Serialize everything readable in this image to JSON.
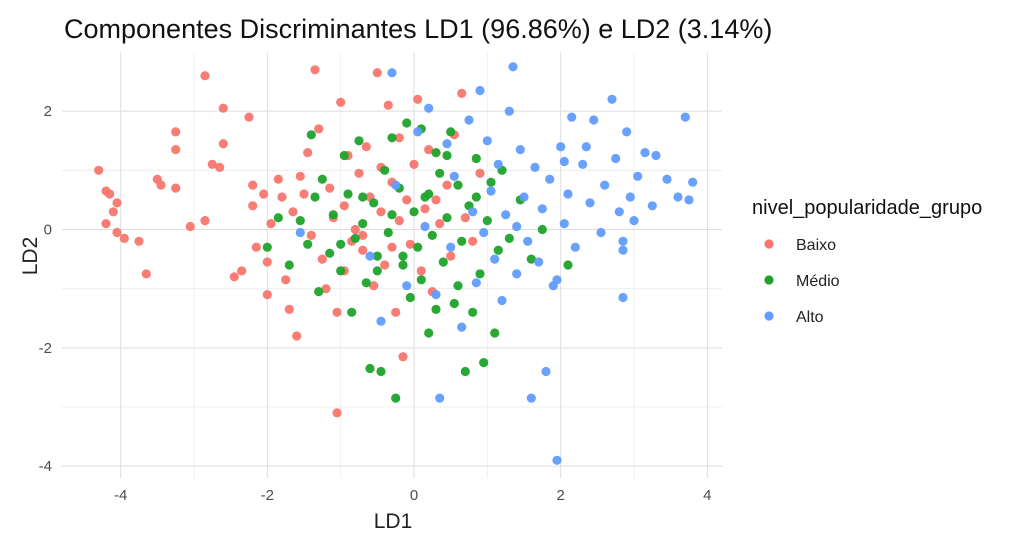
{
  "chart_data": {
    "type": "scatter",
    "title": "Componentes Discriminantes LD1 (96.86%) e LD2 (3.14%)",
    "xlabel": "LD1",
    "ylabel": "LD2",
    "xlim": [
      -4.8,
      4.2
    ],
    "ylim": [
      -4.2,
      3.0
    ],
    "xticks": [
      "-4",
      "-2",
      "0",
      "2",
      "4"
    ],
    "yticks": [
      "-4",
      "-2",
      "0",
      "2"
    ],
    "grid": true,
    "legend": {
      "title": "nivel_popularidade_grupo",
      "placement": "right",
      "entries": [
        "Baixo",
        "Médio",
        "Alto"
      ]
    },
    "series": [
      {
        "name": "Baixo",
        "color": "#f8766d",
        "points": [
          [
            -4.3,
            1.0
          ],
          [
            -4.2,
            0.65
          ],
          [
            -4.15,
            0.6
          ],
          [
            -4.05,
            0.45
          ],
          [
            -4.1,
            0.3
          ],
          [
            -4.2,
            0.1
          ],
          [
            -4.05,
            -0.05
          ],
          [
            -3.95,
            -0.15
          ],
          [
            -3.75,
            -0.2
          ],
          [
            -3.65,
            -0.75
          ],
          [
            -3.5,
            0.85
          ],
          [
            -3.45,
            0.75
          ],
          [
            -3.25,
            1.35
          ],
          [
            -3.25,
            1.65
          ],
          [
            -3.25,
            0.7
          ],
          [
            -3.05,
            0.05
          ],
          [
            -2.85,
            2.6
          ],
          [
            -2.85,
            0.15
          ],
          [
            -2.75,
            1.1
          ],
          [
            -2.65,
            1.05
          ],
          [
            -2.6,
            1.45
          ],
          [
            -2.6,
            2.05
          ],
          [
            -2.45,
            -0.8
          ],
          [
            -2.35,
            -0.7
          ],
          [
            -2.25,
            1.9
          ],
          [
            -2.2,
            0.75
          ],
          [
            -2.2,
            0.4
          ],
          [
            -2.15,
            -0.3
          ],
          [
            -2.05,
            0.6
          ],
          [
            -2.0,
            -1.1
          ],
          [
            -2.0,
            -0.55
          ],
          [
            -1.95,
            0.1
          ],
          [
            -1.85,
            0.85
          ],
          [
            -1.8,
            0.55
          ],
          [
            -1.75,
            -0.85
          ],
          [
            -1.7,
            -1.35
          ],
          [
            -1.65,
            0.3
          ],
          [
            -1.6,
            -1.8
          ],
          [
            -1.55,
            0.9
          ],
          [
            -1.5,
            0.6
          ],
          [
            -1.45,
            1.3
          ],
          [
            -1.4,
            -0.1
          ],
          [
            -1.35,
            2.7
          ],
          [
            -1.3,
            1.7
          ],
          [
            -1.25,
            -0.5
          ],
          [
            -1.2,
            -1.0
          ],
          [
            -1.15,
            0.7
          ],
          [
            -1.1,
            0.2
          ],
          [
            -1.05,
            -1.4
          ],
          [
            -1.0,
            2.15
          ],
          [
            -0.95,
            0.4
          ],
          [
            -0.9,
            1.25
          ],
          [
            -0.85,
            -0.2
          ],
          [
            -0.8,
            0.0
          ],
          [
            -0.75,
            0.95
          ],
          [
            -0.7,
            -0.35
          ],
          [
            -0.65,
            1.4
          ],
          [
            -0.6,
            0.55
          ],
          [
            -0.55,
            -0.95
          ],
          [
            -0.5,
            2.65
          ],
          [
            -0.45,
            0.3
          ],
          [
            -0.45,
            1.05
          ],
          [
            -0.4,
            -0.6
          ],
          [
            -0.35,
            2.1
          ],
          [
            -0.3,
            0.8
          ],
          [
            -0.25,
            -1.4
          ],
          [
            -0.2,
            0.15
          ],
          [
            -0.2,
            1.55
          ],
          [
            -0.15,
            -2.15
          ],
          [
            -0.1,
            0.5
          ],
          [
            -0.05,
            -0.25
          ],
          [
            0.0,
            1.1
          ],
          [
            0.05,
            2.2
          ],
          [
            0.1,
            -0.7
          ],
          [
            0.15,
            0.35
          ],
          [
            0.2,
            1.35
          ],
          [
            0.25,
            -1.05
          ],
          [
            0.35,
            0.1
          ],
          [
            0.45,
            0.75
          ],
          [
            0.5,
            -0.45
          ],
          [
            0.55,
            1.6
          ],
          [
            0.65,
            2.3
          ],
          [
            0.7,
            0.2
          ],
          [
            0.8,
            -0.2
          ],
          [
            0.9,
            0.95
          ],
          [
            -1.05,
            -3.1
          ],
          [
            -0.3,
            -0.3
          ],
          [
            -0.7,
            -0.1
          ],
          [
            -0.95,
            -0.7
          ],
          [
            0.3,
            0.5
          ]
        ]
      },
      {
        "name": "Médio",
        "color": "#1fa32b",
        "points": [
          [
            -2.0,
            -0.3
          ],
          [
            -1.85,
            0.2
          ],
          [
            -1.7,
            -0.6
          ],
          [
            -1.55,
            0.15
          ],
          [
            -1.45,
            -0.25
          ],
          [
            -1.4,
            1.6
          ],
          [
            -1.35,
            0.55
          ],
          [
            -1.3,
            -1.05
          ],
          [
            -1.25,
            0.85
          ],
          [
            -1.15,
            -0.4
          ],
          [
            -1.1,
            0.25
          ],
          [
            -1.0,
            -0.7
          ],
          [
            -0.95,
            1.25
          ],
          [
            -0.9,
            0.6
          ],
          [
            -0.85,
            -1.4
          ],
          [
            -0.8,
            -0.15
          ],
          [
            -0.75,
            1.5
          ],
          [
            -0.7,
            0.1
          ],
          [
            -0.65,
            -0.9
          ],
          [
            -0.6,
            -2.35
          ],
          [
            -0.55,
            0.45
          ],
          [
            -0.5,
            -0.45
          ],
          [
            -0.45,
            -2.4
          ],
          [
            -0.4,
            1.0
          ],
          [
            -0.35,
            -0.05
          ],
          [
            -0.3,
            1.55
          ],
          [
            -0.25,
            -2.85
          ],
          [
            -0.2,
            0.7
          ],
          [
            -0.15,
            -0.6
          ],
          [
            -0.1,
            1.8
          ],
          [
            -0.05,
            -1.15
          ],
          [
            0.0,
            0.3
          ],
          [
            0.05,
            -0.3
          ],
          [
            0.1,
            1.7
          ],
          [
            0.15,
            0.55
          ],
          [
            0.2,
            -1.75
          ],
          [
            0.25,
            -0.1
          ],
          [
            0.3,
            1.3
          ],
          [
            0.35,
            0.95
          ],
          [
            0.4,
            -0.55
          ],
          [
            0.45,
            0.2
          ],
          [
            0.5,
            1.65
          ],
          [
            0.55,
            -1.25
          ],
          [
            0.6,
            0.75
          ],
          [
            0.65,
            -0.2
          ],
          [
            0.7,
            -2.4
          ],
          [
            0.75,
            0.4
          ],
          [
            0.8,
            -1.4
          ],
          [
            0.85,
            1.2
          ],
          [
            0.9,
            -0.75
          ],
          [
            0.95,
            -2.25
          ],
          [
            1.0,
            0.15
          ],
          [
            1.05,
            0.8
          ],
          [
            1.1,
            -1.75
          ],
          [
            1.15,
            -0.35
          ],
          [
            1.2,
            1.0
          ],
          [
            1.3,
            -0.15
          ],
          [
            1.45,
            0.5
          ],
          [
            1.6,
            -0.5
          ],
          [
            1.75,
            0.0
          ],
          [
            2.1,
            -0.6
          ],
          [
            -0.5,
            -0.7
          ],
          [
            0.2,
            0.6
          ],
          [
            -0.3,
            0.25
          ],
          [
            0.6,
            -0.95
          ],
          [
            -0.15,
            -0.45
          ],
          [
            0.45,
            1.25
          ],
          [
            0.85,
            0.55
          ],
          [
            -0.7,
            0.55
          ],
          [
            0.3,
            -1.35
          ],
          [
            -1.0,
            -0.25
          ],
          [
            0.1,
            -0.85
          ]
        ]
      },
      {
        "name": "Alto",
        "color": "#619cff",
        "points": [
          [
            -1.55,
            -0.05
          ],
          [
            -0.6,
            -0.45
          ],
          [
            -0.45,
            -1.55
          ],
          [
            -0.3,
            2.65
          ],
          [
            -0.25,
            0.75
          ],
          [
            -0.1,
            -0.95
          ],
          [
            0.05,
            1.65
          ],
          [
            0.15,
            0.05
          ],
          [
            0.2,
            2.05
          ],
          [
            0.3,
            -1.1
          ],
          [
            0.35,
            -2.85
          ],
          [
            0.45,
            1.45
          ],
          [
            0.5,
            -0.3
          ],
          [
            0.55,
            0.9
          ],
          [
            0.65,
            -1.65
          ],
          [
            0.75,
            1.85
          ],
          [
            0.8,
            0.3
          ],
          [
            0.85,
            -0.9
          ],
          [
            0.9,
            2.35
          ],
          [
            0.95,
            -0.05
          ],
          [
            1.0,
            1.5
          ],
          [
            1.05,
            0.65
          ],
          [
            1.1,
            -0.5
          ],
          [
            1.15,
            1.1
          ],
          [
            1.2,
            -1.2
          ],
          [
            1.25,
            0.25
          ],
          [
            1.3,
            2.0
          ],
          [
            1.35,
            2.75
          ],
          [
            1.4,
            -0.75
          ],
          [
            1.45,
            1.35
          ],
          [
            1.5,
            0.55
          ],
          [
            1.55,
            -0.2
          ],
          [
            1.6,
            -2.85
          ],
          [
            1.65,
            1.05
          ],
          [
            1.7,
            -0.55
          ],
          [
            1.75,
            0.35
          ],
          [
            1.8,
            -2.4
          ],
          [
            1.85,
            0.85
          ],
          [
            1.9,
            -0.95
          ],
          [
            1.95,
            -3.9
          ],
          [
            2.0,
            1.4
          ],
          [
            2.05,
            0.1
          ],
          [
            2.1,
            0.6
          ],
          [
            2.15,
            1.9
          ],
          [
            2.2,
            -0.3
          ],
          [
            2.3,
            1.1
          ],
          [
            2.4,
            0.45
          ],
          [
            2.45,
            1.85
          ],
          [
            2.55,
            -0.05
          ],
          [
            2.6,
            0.75
          ],
          [
            2.7,
            2.2
          ],
          [
            2.75,
            1.2
          ],
          [
            2.8,
            0.3
          ],
          [
            2.85,
            -0.2
          ],
          [
            2.9,
            1.65
          ],
          [
            2.95,
            0.55
          ],
          [
            3.05,
            0.9
          ],
          [
            3.15,
            1.3
          ],
          [
            3.25,
            0.4
          ],
          [
            3.3,
            1.25
          ],
          [
            3.45,
            0.85
          ],
          [
            3.6,
            0.55
          ],
          [
            3.7,
            1.9
          ],
          [
            3.75,
            0.5
          ],
          [
            3.8,
            0.8
          ],
          [
            2.85,
            -1.15
          ],
          [
            2.85,
            -0.35
          ],
          [
            1.95,
            -0.85
          ],
          [
            2.35,
            1.4
          ],
          [
            3.0,
            0.15
          ],
          [
            2.05,
            1.15
          ],
          [
            1.4,
            0.05
          ]
        ]
      }
    ]
  }
}
